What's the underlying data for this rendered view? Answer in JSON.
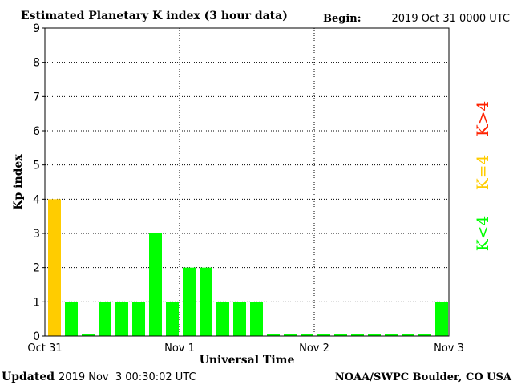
{
  "header": {
    "title": "Estimated Planetary K index (3 hour data)",
    "begin_label": "Begin:",
    "begin_value": "2019 Oct 31 0000 UTC"
  },
  "footer": {
    "updated_label": "Updated",
    "updated_value": "2019 Nov  3 00:30:02 UTC",
    "credit": "NOAA/SWPC Boulder, CO USA"
  },
  "legend": {
    "position": "right",
    "entries": [
      {
        "label": "K<4",
        "color": "#00ff00"
      },
      {
        "label": "K=4",
        "color": "#ffcc00"
      },
      {
        "label": "K>4",
        "color": "#ff2200"
      }
    ]
  },
  "chart_data": {
    "type": "bar",
    "title": "Estimated Planetary K index (3 hour data)",
    "xlabel": "Universal Time",
    "ylabel": "Kp index",
    "ylim": [
      0,
      9
    ],
    "yticks": [
      "0",
      "1",
      "2",
      "3",
      "4",
      "5",
      "6",
      "7",
      "8",
      "9"
    ],
    "xticks": [
      "Oct 31",
      "Nov 1",
      "Nov 2",
      "Nov 3"
    ],
    "bars_per_day": 8,
    "grid": "dotted, at each integer Kp and each day boundary",
    "colors": {
      "low": "#00ff00",
      "equal": "#ffcc00",
      "high": "#ff2200"
    },
    "values": [
      4,
      1,
      0.05,
      1,
      1,
      1,
      3,
      1,
      2,
      2,
      1,
      1,
      1,
      0.05,
      0.05,
      0.05,
      0.05,
      0.05,
      0.05,
      0.05,
      0.05,
      0.05,
      0.05,
      1
    ]
  }
}
